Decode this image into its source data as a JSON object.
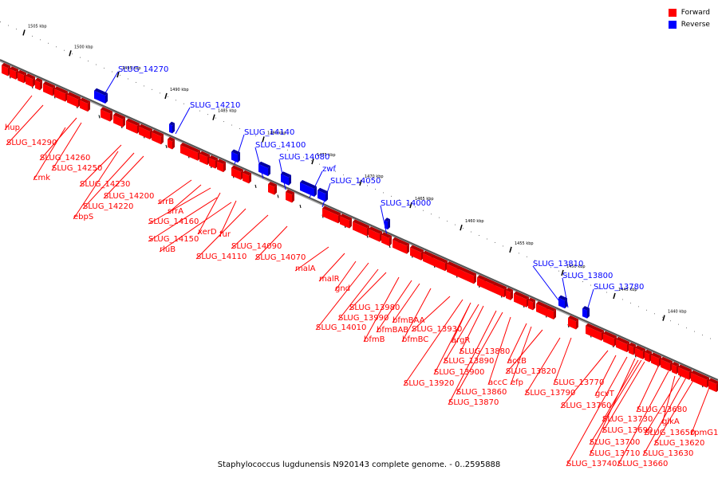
{
  "legend": {
    "forward": {
      "label": "Forward",
      "color": "#ff0000"
    },
    "reverse": {
      "label": "Reverse",
      "color": "#0000ff"
    }
  },
  "caption": "Staphylococcus lugdunensis N920143 complete genome. - 0..2595888",
  "ticks": [
    "1505 kbp",
    "1500 kbp",
    "1495 kbp",
    "1490 kbp",
    "1485 kbp",
    "1480 kbp",
    "1475 kbp",
    "1470 kbp",
    "1465 kbp",
    "1460 kbp",
    "1455 kbp",
    "1450 kbp",
    "1445 kbp",
    "1440 kbp"
  ],
  "reverse_genes": [
    "SLUG_14270",
    "SLUG_14210",
    "SLUG_14140",
    "SLUG_14100",
    "SLUG_14080",
    "zwf",
    "SLUG_14050",
    "SLUG_14000",
    "SLUG_13810",
    "SLUG_13800",
    "SLUG_13780"
  ],
  "forward_genes": [
    "hup",
    "SLUG_14290",
    "SLUG_14260",
    "SLUG_14250",
    "cmk",
    "SLUG_14230",
    "SLUG_14200",
    "SLUG_14220",
    "ebpS",
    "srrB",
    "srrA",
    "SLUG_14160",
    "xerD",
    "fur",
    "SLUG_14150",
    "rluB",
    "SLUG_14090",
    "SLUG_14110",
    "SLUG_14070",
    "malA",
    "malR",
    "gnd",
    "SLUG_13980",
    "SLUG_13990",
    "bfmBAA",
    "SLUG_14010",
    "bfmBAB",
    "SLUG_13930",
    "bfmB",
    "bfmBC",
    "argR",
    "SLUG_13880",
    "SLUG_13890",
    "accB",
    "SLUG_13900",
    "SLUG_13820",
    "accC",
    "efp",
    "SLUG_13920",
    "SLUG_13860",
    "SLUG_13870",
    "SLUG_13770",
    "SLUG_13790",
    "gcvT",
    "SLUG_13760",
    "SLUG_13680",
    "SLUG_13730",
    "SLUG_13690",
    "glkA",
    "SLUG_13650",
    "rpmG1",
    "SLUG_13700",
    "SLUG_13620",
    "SLUG_13710",
    "SLUG_13630",
    "SLUG_13740",
    "SLUG_13660"
  ]
}
